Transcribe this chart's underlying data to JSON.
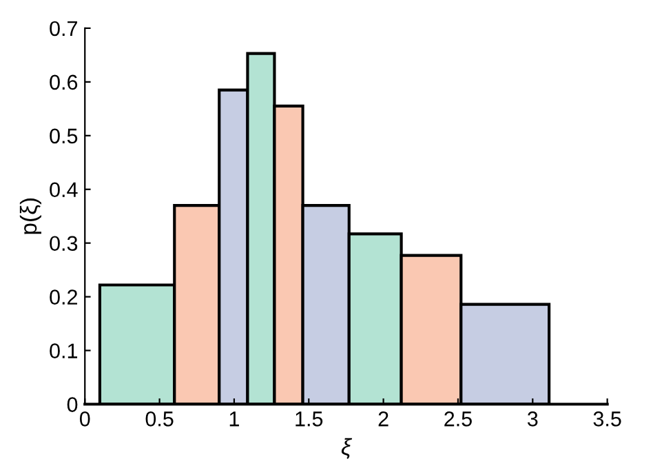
{
  "chart_data": {
    "type": "histogram",
    "xlabel": "ξ",
    "ylabel": "p(ξ)",
    "bins": [
      0.1,
      0.6,
      0.9,
      1.09,
      1.27,
      1.46,
      1.77,
      2.12,
      2.52,
      3.11
    ],
    "values": [
      0.222,
      0.37,
      0.585,
      0.653,
      0.555,
      0.37,
      0.317,
      0.277,
      0.186
    ],
    "colors": [
      "#b3e3d3",
      "#fac8b2",
      "#c6cde3",
      "#b3e3d3",
      "#fac8b2",
      "#c6cde3",
      "#b3e3d3",
      "#fac8b2",
      "#c6cde3"
    ],
    "xlim": [
      0,
      3.5
    ],
    "xticks": [
      0,
      0.5,
      1,
      1.5,
      2,
      2.5,
      3,
      3.5
    ],
    "ylim": [
      0,
      0.7
    ],
    "yticks": [
      0,
      0.1,
      0.2,
      0.3,
      0.4,
      0.5,
      0.6,
      0.7
    ],
    "grid": false,
    "legend": false
  }
}
